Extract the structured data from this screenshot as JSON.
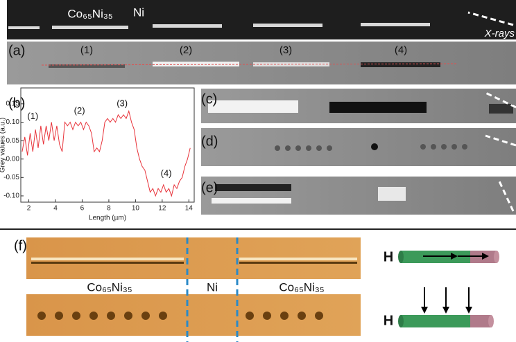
{
  "figure": {
    "top": {
      "alloy": "Co₆₅Ni₃₅",
      "metal": "Ni",
      "xrays": "X-rays"
    },
    "panel_a": {
      "label": "(a)",
      "segments": [
        "(1)",
        "(2)",
        "(3)",
        "(4)"
      ]
    },
    "panel_b": {
      "label": "(b)"
    },
    "panel_c": {
      "label": "(c)"
    },
    "panel_d": {
      "label": "(d)"
    },
    "panel_e": {
      "label": "(e)"
    },
    "panel_f": {
      "label": "(f)",
      "regions": [
        "Co₆₅Ni₃₅",
        "Ni",
        "Co₆₅Ni₃₅"
      ],
      "field_1": "H",
      "field_2": "H"
    }
  },
  "chart_data": {
    "type": "line",
    "xlabel": "Length (µm)",
    "ylabel": "Grey values (a.u.)",
    "annotations": [
      {
        "text": "(1)",
        "x": 2.3,
        "y": 0.115
      },
      {
        "text": "(2)",
        "x": 5.8,
        "y": 0.13
      },
      {
        "text": "(3)",
        "x": 9.0,
        "y": 0.15
      },
      {
        "text": "(4)",
        "x": 12.3,
        "y": -0.04
      }
    ],
    "x": [
      1.5,
      1.7,
      1.9,
      2.1,
      2.3,
      2.5,
      2.7,
      2.9,
      3.1,
      3.3,
      3.5,
      3.7,
      3.9,
      4.1,
      4.3,
      4.5,
      4.7,
      4.9,
      5.1,
      5.3,
      5.5,
      5.7,
      5.9,
      6.1,
      6.3,
      6.5,
      6.7,
      6.9,
      7.1,
      7.3,
      7.5,
      7.7,
      7.9,
      8.1,
      8.3,
      8.5,
      8.7,
      8.9,
      9.1,
      9.3,
      9.5,
      9.7,
      9.9,
      10.1,
      10.3,
      10.5,
      10.7,
      10.9,
      11.1,
      11.3,
      11.5,
      11.7,
      11.9,
      12.1,
      12.3,
      12.5,
      12.7,
      12.9,
      13.1,
      13.3,
      13.5,
      13.7,
      13.9,
      14.1
    ],
    "series": [
      {
        "color": "#e8333a",
        "values": [
          0.02,
          0.06,
          0.01,
          0.07,
          0.02,
          0.08,
          0.03,
          0.09,
          0.04,
          0.09,
          0.05,
          0.1,
          0.05,
          0.09,
          0.04,
          0.02,
          0.1,
          0.09,
          0.1,
          0.08,
          0.1,
          0.09,
          0.1,
          0.08,
          0.1,
          0.09,
          0.07,
          0.02,
          0.03,
          0.02,
          0.05,
          0.1,
          0.11,
          0.1,
          0.11,
          0.1,
          0.12,
          0.11,
          0.12,
          0.11,
          0.13,
          0.1,
          0.08,
          0.03,
          0.0,
          -0.02,
          -0.03,
          -0.06,
          -0.09,
          -0.08,
          -0.1,
          -0.08,
          -0.09,
          -0.07,
          -0.09,
          -0.08,
          -0.1,
          -0.07,
          -0.08,
          -0.06,
          -0.05,
          -0.02,
          0.0,
          0.03
        ]
      }
    ],
    "xlim": [
      1.4,
      14.4
    ],
    "ylim": [
      -0.117,
      0.193
    ],
    "xticks": [
      2,
      4,
      6,
      8,
      10,
      12,
      14
    ],
    "yticks": [
      {
        "value": -0.1,
        "label": "-0.10"
      },
      -0.05,
      {
        "value": 0,
        "label": "0.00"
      },
      0.05,
      {
        "value": 0.1,
        "label": "0.10"
      },
      0.15
    ]
  }
}
